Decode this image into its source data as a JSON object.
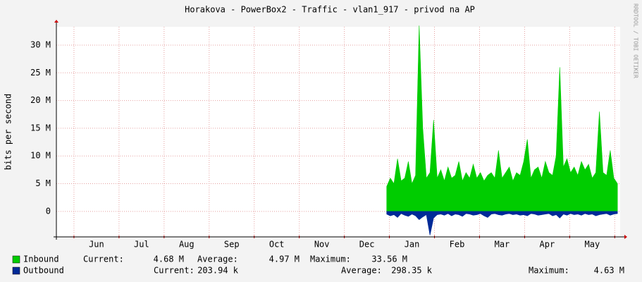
{
  "chart_data": {
    "type": "area",
    "title": "Horakova - PowerBox2 - Traffic - vlan1_917 - privod na AP",
    "ylabel": "bits per second",
    "watermark": "RRDTOOL / TOBI OETIKER",
    "xlim": [
      -0.39,
      12.12
    ],
    "xticks": [
      {
        "value": 0.5,
        "label": "Jun"
      },
      {
        "value": 1.5,
        "label": "Jul"
      },
      {
        "value": 2.5,
        "label": "Aug"
      },
      {
        "value": 3.5,
        "label": "Sep"
      },
      {
        "value": 4.5,
        "label": "Oct"
      },
      {
        "value": 5.5,
        "label": "Nov"
      },
      {
        "value": 6.5,
        "label": "Dec"
      },
      {
        "value": 7.5,
        "label": "Jan"
      },
      {
        "value": 8.5,
        "label": "Feb"
      },
      {
        "value": 9.5,
        "label": "Mar"
      },
      {
        "value": 10.5,
        "label": "Apr"
      },
      {
        "value": 11.5,
        "label": "May"
      }
    ],
    "xgrid": [
      0,
      1,
      2,
      3,
      4,
      5,
      6,
      7,
      8,
      9,
      10,
      11,
      12
    ],
    "ylim": [
      -4.6,
      33.3
    ],
    "yticks": [
      0,
      {
        "value": 5,
        "label": "5 M"
      },
      {
        "value": 10,
        "label": "10 M"
      },
      {
        "value": 15,
        "label": "15 M"
      },
      {
        "value": 20,
        "label": "20 M"
      },
      {
        "value": 25,
        "label": "25 M"
      },
      {
        "value": 30,
        "label": "30 M"
      }
    ],
    "grid": true,
    "x": [
      6.94,
      7.02,
      7.1,
      7.18,
      7.26,
      7.34,
      7.42,
      7.5,
      7.58,
      7.66,
      7.74,
      7.82,
      7.9,
      7.98,
      8.06,
      8.14,
      8.22,
      8.3,
      8.38,
      8.46,
      8.54,
      8.62,
      8.7,
      8.78,
      8.86,
      8.94,
      9.02,
      9.1,
      9.18,
      9.26,
      9.34,
      9.42,
      9.5,
      9.58,
      9.66,
      9.74,
      9.82,
      9.9,
      9.98,
      10.06,
      10.14,
      10.22,
      10.3,
      10.38,
      10.46,
      10.54,
      10.62,
      10.7,
      10.78,
      10.86,
      10.94,
      11.02,
      11.1,
      11.18,
      11.26,
      11.34,
      11.42,
      11.5,
      11.58,
      11.66,
      11.74,
      11.82,
      11.9,
      11.98,
      12.06
    ],
    "series": [
      {
        "name": "Inbound",
        "color": "#00cc00",
        "values": [
          4.5,
          6,
          5,
          9.5,
          5.5,
          6,
          9,
          5,
          6.5,
          33.5,
          15,
          6,
          7,
          16.5,
          6,
          7.5,
          5.5,
          8,
          6,
          6.5,
          9,
          5.5,
          7,
          6,
          8.5,
          6,
          7,
          5.5,
          6.5,
          7,
          6,
          11,
          6,
          7,
          8,
          5.5,
          7,
          6.5,
          9,
          13,
          6,
          7.5,
          8,
          6,
          9,
          7,
          6.5,
          10,
          26,
          8,
          9.5,
          7,
          8,
          6.5,
          9,
          7.5,
          8.5,
          6,
          7,
          18,
          7,
          6.5,
          11,
          6,
          5
        ],
        "current_label": "Current:",
        "current": "4.68 M",
        "average_label": "Average:",
        "average": "4.97 M",
        "maximum_label": "Maximum:",
        "maximum": "33.56 M"
      },
      {
        "name": "Outbound",
        "color": "#002a97",
        "values": [
          -0.5,
          -0.8,
          -0.6,
          -1.1,
          -0.4,
          -0.7,
          -0.9,
          -0.5,
          -0.8,
          -1.5,
          -1,
          -0.6,
          -4.3,
          -1.2,
          -0.6,
          -0.5,
          -0.7,
          -0.4,
          -0.8,
          -0.5,
          -0.6,
          -0.9,
          -0.4,
          -0.5,
          -0.7,
          -0.6,
          -0.4,
          -0.8,
          -1.1,
          -0.5,
          -0.4,
          -0.6,
          -0.7,
          -0.5,
          -0.4,
          -0.6,
          -0.5,
          -0.7,
          -0.6,
          -0.8,
          -0.4,
          -0.5,
          -0.7,
          -0.6,
          -0.5,
          -0.4,
          -0.8,
          -0.6,
          -1.2,
          -0.5,
          -0.7,
          -0.4,
          -0.6,
          -0.5,
          -0.7,
          -0.4,
          -0.6,
          -0.5,
          -0.8,
          -0.6,
          -0.5,
          -0.4,
          -0.7,
          -0.5,
          -0.4
        ],
        "current_label": "Current:",
        "current": "203.94 k",
        "average_label": "Average:",
        "average": "298.35 k",
        "maximum_label": "Maximum:",
        "maximum": "4.63 M"
      }
    ]
  }
}
